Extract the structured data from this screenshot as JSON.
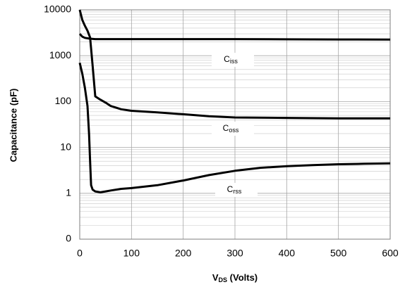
{
  "chart_data": {
    "type": "line",
    "log_y": true,
    "grid": true,
    "minor_grid": true,
    "color": "#000000",
    "y_label": "Capacitance (pF)",
    "x_label": {
      "main": "V",
      "sub": "DS",
      "rest": " (Volts)"
    },
    "xlim": [
      0,
      600
    ],
    "xticks": [
      0,
      100,
      200,
      300,
      400,
      500,
      600
    ],
    "ylim": [
      0.1,
      10000
    ],
    "yticks": [
      {
        "value": 0.1,
        "label": "0"
      },
      1,
      10,
      100,
      1000,
      10000
    ],
    "series": [
      {
        "name": {
          "main": "C",
          "sub": "iss"
        },
        "x": [
          0,
          5,
          10,
          20,
          30,
          100,
          200,
          300,
          400,
          500,
          600
        ],
        "values": [
          3000,
          2600,
          2450,
          2350,
          2300,
          2300,
          2300,
          2300,
          2280,
          2260,
          2250
        ]
      },
      {
        "name": {
          "main": "C",
          "sub": "oss"
        },
        "x": [
          0,
          5,
          10,
          15,
          20,
          25,
          30,
          40,
          50,
          60,
          80,
          100,
          150,
          200,
          250,
          300,
          400,
          500,
          600
        ],
        "values": [
          10000,
          6000,
          4500,
          3500,
          2500,
          600,
          130,
          110,
          95,
          80,
          68,
          63,
          58,
          53,
          48,
          45,
          44,
          43,
          43
        ]
      },
      {
        "name": {
          "main": "C",
          "sub": "rss"
        },
        "x": [
          0,
          5,
          10,
          15,
          18,
          20,
          22,
          25,
          30,
          40,
          50,
          60,
          80,
          100,
          150,
          200,
          250,
          300,
          350,
          400,
          450,
          500,
          550,
          600
        ],
        "values": [
          700,
          400,
          200,
          80,
          20,
          5,
          1.5,
          1.2,
          1.1,
          1.05,
          1.1,
          1.15,
          1.25,
          1.3,
          1.5,
          1.9,
          2.5,
          3.1,
          3.6,
          3.9,
          4.1,
          4.3,
          4.4,
          4.5
        ]
      }
    ]
  }
}
